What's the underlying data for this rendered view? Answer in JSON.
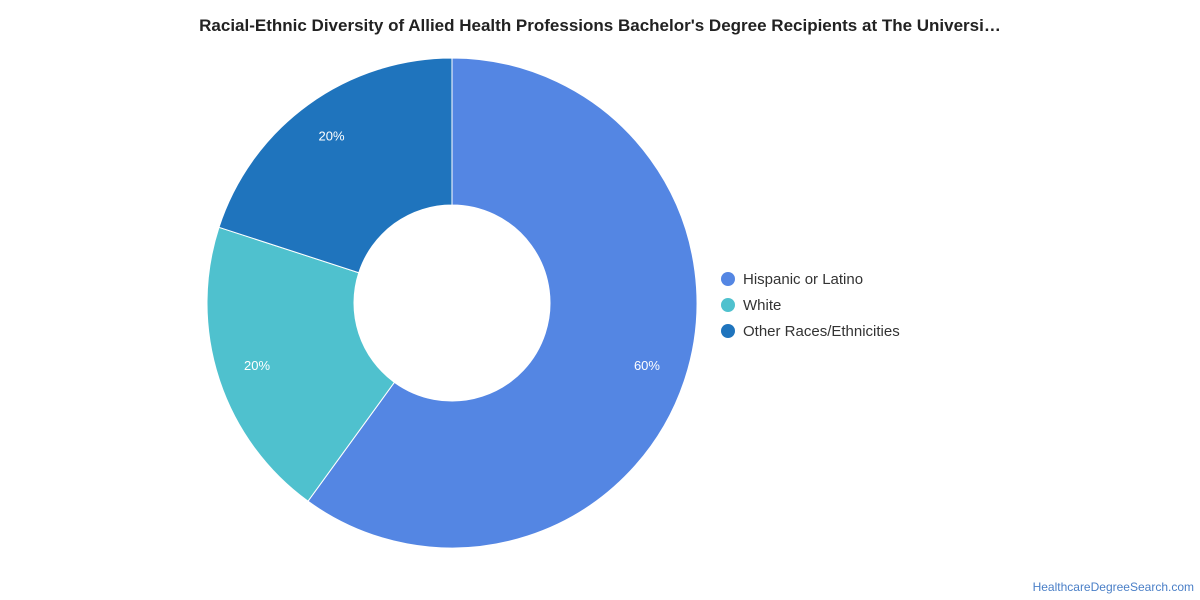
{
  "chart_data": {
    "type": "pie",
    "title": "Racial-Ethnic Diversity of Allied Health Professions Bachelor's Degree Recipients at The Universi…",
    "slices": [
      {
        "label": "Hispanic or Latino",
        "value": 60,
        "display": "60%",
        "color": "#5486e3"
      },
      {
        "label": "White",
        "value": 20,
        "display": "20%",
        "color": "#4fc1ce"
      },
      {
        "label": "Other Races/Ethnicities",
        "value": 20,
        "display": "20%",
        "color": "#1f74bd"
      }
    ],
    "legend_position": "right"
  },
  "footer": {
    "source": "HealthcareDegreeSearch.com"
  }
}
